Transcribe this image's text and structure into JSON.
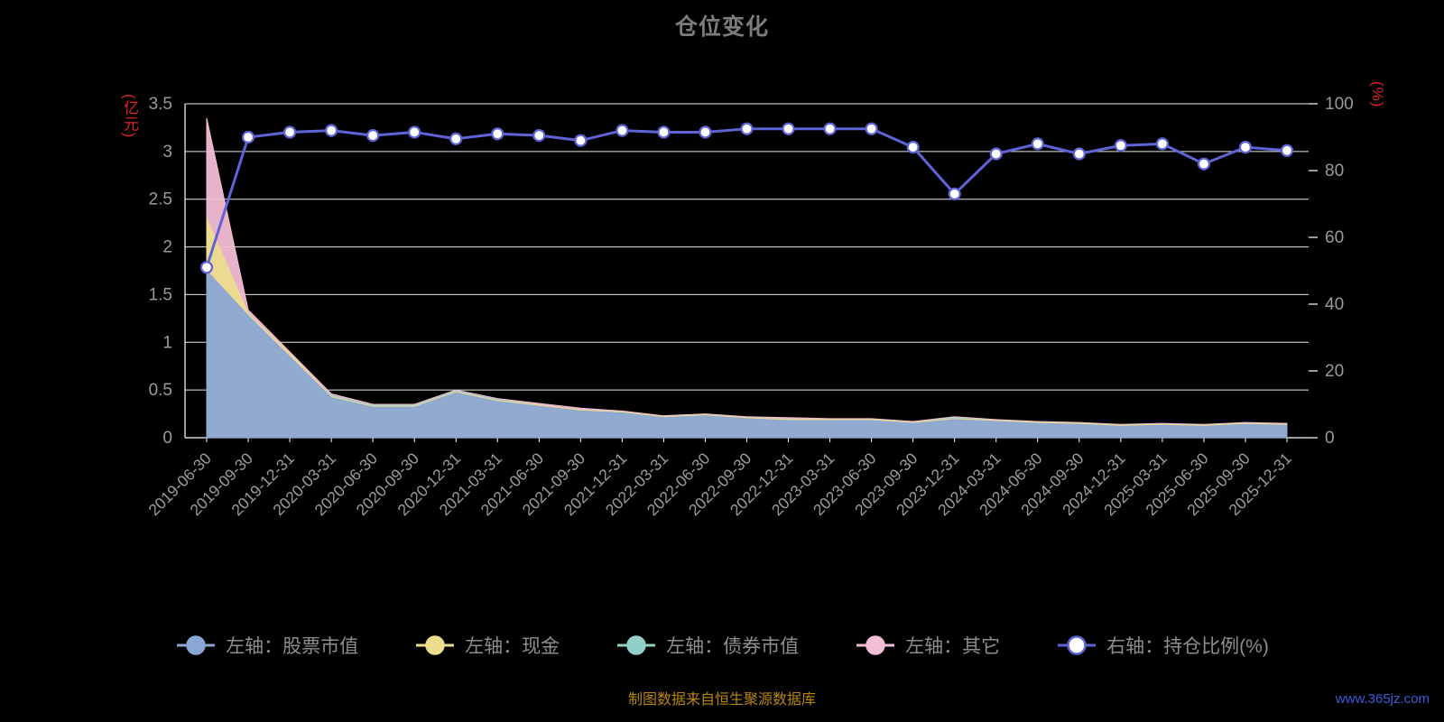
{
  "page": {
    "title": "仓位变化",
    "caption": "制图数据来自恒生聚源数据库",
    "watermark": "www.365jz.com"
  },
  "legend": {
    "items": [
      {
        "label": "左轴：股票市值",
        "color": "#8ba6d4",
        "marker": "filled"
      },
      {
        "label": "左轴：现金",
        "color": "#ecdc8e",
        "marker": "filled"
      },
      {
        "label": "左轴：债券市值",
        "color": "#93cfc9",
        "marker": "filled"
      },
      {
        "label": "左轴：其它",
        "color": "#f3bdd5",
        "marker": "filled"
      },
      {
        "label": "右轴：持仓比例(%)",
        "color": "#5f63d6",
        "marker": "ring"
      }
    ]
  },
  "chart_data": {
    "type": "area+line",
    "title": "仓位变化",
    "grid": true,
    "legend_position": "bottom",
    "x": [
      "2019-06-30",
      "2019-09-30",
      "2019-12-31",
      "2020-03-31",
      "2020-06-30",
      "2020-09-30",
      "2020-12-31",
      "2021-03-31",
      "2021-06-30",
      "2021-09-30",
      "2021-12-31",
      "2022-03-31",
      "2022-06-30",
      "2022-09-30",
      "2022-12-31",
      "2023-03-31",
      "2023-06-30",
      "2023-09-30",
      "2023-12-31",
      "2024-03-31",
      "2024-06-30",
      "2024-09-30",
      "2024-12-31",
      "2025-03-31",
      "2025-06-30",
      "2025-09-30",
      "2025-12-31"
    ],
    "left_axis": {
      "title": "(亿元)",
      "range": [
        0,
        3.5
      ],
      "ticks": [
        0,
        0.5,
        1,
        1.5,
        2,
        2.5,
        3,
        3.5
      ]
    },
    "right_axis": {
      "title": "(%)",
      "range": [
        0,
        100
      ],
      "ticks": [
        0,
        20,
        40,
        60,
        80,
        100
      ]
    },
    "series": [
      {
        "name": "左轴：股票市值",
        "axis": "left",
        "type": "area",
        "color": "#8ba6d4",
        "values": [
          1.75,
          1.28,
          0.85,
          0.42,
          0.32,
          0.32,
          0.47,
          0.38,
          0.33,
          0.28,
          0.26,
          0.21,
          0.23,
          0.2,
          0.18,
          0.18,
          0.18,
          0.15,
          0.19,
          0.17,
          0.15,
          0.14,
          0.12,
          0.13,
          0.12,
          0.14,
          0.13
        ]
      },
      {
        "name": "左轴：现金",
        "axis": "left",
        "type": "area",
        "color": "#ecdc8e",
        "values": [
          2.3,
          1.3,
          0.88,
          0.43,
          0.33,
          0.33,
          0.48,
          0.39,
          0.34,
          0.29,
          0.27,
          0.22,
          0.24,
          0.21,
          0.19,
          0.19,
          0.19,
          0.16,
          0.2,
          0.18,
          0.16,
          0.15,
          0.13,
          0.14,
          0.13,
          0.15,
          0.14
        ]
      },
      {
        "name": "左轴：债券市值",
        "axis": "left",
        "type": "area",
        "color": "#93cfc9",
        "values": [
          1.6,
          1.26,
          0.86,
          0.44,
          0.34,
          0.34,
          0.49,
          0.4,
          0.34,
          0.29,
          0.27,
          0.22,
          0.24,
          0.21,
          0.19,
          0.19,
          0.19,
          0.16,
          0.21,
          0.18,
          0.16,
          0.15,
          0.13,
          0.14,
          0.13,
          0.15,
          0.14
        ]
      },
      {
        "name": "左轴：其它",
        "axis": "left",
        "type": "area",
        "color": "#f3bdd5",
        "values": [
          3.35,
          1.34,
          0.9,
          0.46,
          0.35,
          0.35,
          0.5,
          0.41,
          0.36,
          0.31,
          0.28,
          0.23,
          0.25,
          0.22,
          0.21,
          0.2,
          0.2,
          0.17,
          0.22,
          0.19,
          0.17,
          0.16,
          0.14,
          0.15,
          0.14,
          0.16,
          0.15
        ]
      },
      {
        "name": "右轴：持仓比例(%)",
        "axis": "right",
        "type": "line",
        "color": "#5f63d6",
        "values": [
          51,
          90,
          91.5,
          92,
          90.5,
          91.5,
          89.5,
          91,
          90.5,
          89,
          92,
          91.5,
          91.5,
          92.5,
          92.5,
          92.5,
          92.5,
          87,
          73,
          85,
          88,
          85,
          87.5,
          88,
          82,
          87,
          86
        ]
      }
    ]
  }
}
